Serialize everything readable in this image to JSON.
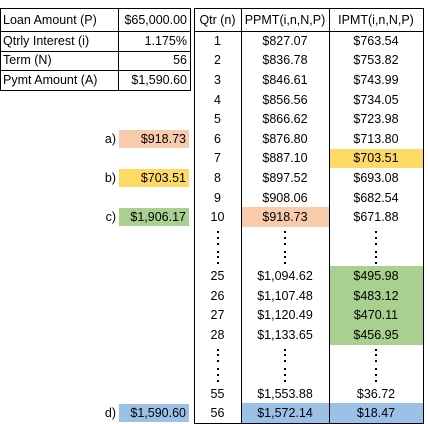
{
  "inputs": [
    {
      "label": "Loan Amount (P)",
      "value": "$65,000.00"
    },
    {
      "label": "Qtrly Interest (i)",
      "value": "1.175%"
    },
    {
      "label": "Term (N)",
      "value": "56"
    },
    {
      "label": "Pymt Amount (A)",
      "value": "$1,590.60"
    }
  ],
  "annotations": [
    {
      "label": "a)",
      "value": "$918.73",
      "fill": "#f8cbad"
    },
    {
      "label": "b)",
      "value": "$703.51",
      "fill": "#ffd966"
    },
    {
      "label": "c)",
      "value": "$1,906.17",
      "fill": "#a9d08e"
    },
    {
      "label": "d)",
      "value": "$1,590.60",
      "fill": "#9bc2e6"
    }
  ],
  "table": {
    "header": [
      "Qtr (n)",
      "PPMT(i,n,N,P)",
      "IPMT(i,n,N,P)"
    ],
    "rows": [
      {
        "qtr": "1",
        "ppmt": "$827.07",
        "ipmt": "$763.54"
      },
      {
        "qtr": "2",
        "ppmt": "$836.78",
        "ipmt": "$753.82"
      },
      {
        "qtr": "3",
        "ppmt": "$846.61",
        "ipmt": "$743.99"
      },
      {
        "qtr": "4",
        "ppmt": "$856.56",
        "ipmt": "$734.05"
      },
      {
        "qtr": "5",
        "ppmt": "$866.62",
        "ipmt": "$723.98"
      },
      {
        "qtr": "6",
        "ppmt": "$876.80",
        "ipmt": "$713.80"
      },
      {
        "qtr": "7",
        "ppmt": "$887.10",
        "ipmt": "$703.51",
        "ipmt_fill": "#ffd966"
      },
      {
        "qtr": "8",
        "ppmt": "$897.52",
        "ipmt": "$693.08"
      },
      {
        "qtr": "9",
        "ppmt": "$908.06",
        "ipmt": "$682.54"
      },
      {
        "qtr": "10",
        "ppmt": "$918.73",
        "ipmt": "$671.88",
        "ppmt_fill": "#f8cbad"
      },
      {
        "qtr": "25",
        "ppmt": "$1,094.62",
        "ipmt": "$495.98",
        "ipmt_fill": "#a9d08e"
      },
      {
        "qtr": "26",
        "ppmt": "$1,107.48",
        "ipmt": "$483.12",
        "ipmt_fill": "#a9d08e"
      },
      {
        "qtr": "27",
        "ppmt": "$1,120.49",
        "ipmt": "$470.11",
        "ipmt_fill": "#a9d08e"
      },
      {
        "qtr": "28",
        "ppmt": "$1,133.65",
        "ipmt": "$456.95",
        "ipmt_fill": "#a9d08e"
      },
      {
        "qtr": "55",
        "ppmt": "$1,553.88",
        "ipmt": "$36.72"
      },
      {
        "qtr": "56",
        "ppmt": "$1,572.14",
        "ipmt": "$18.47",
        "ppmt_fill": "#9bc2e6",
        "ipmt_fill": "#9bc2e6"
      }
    ]
  }
}
